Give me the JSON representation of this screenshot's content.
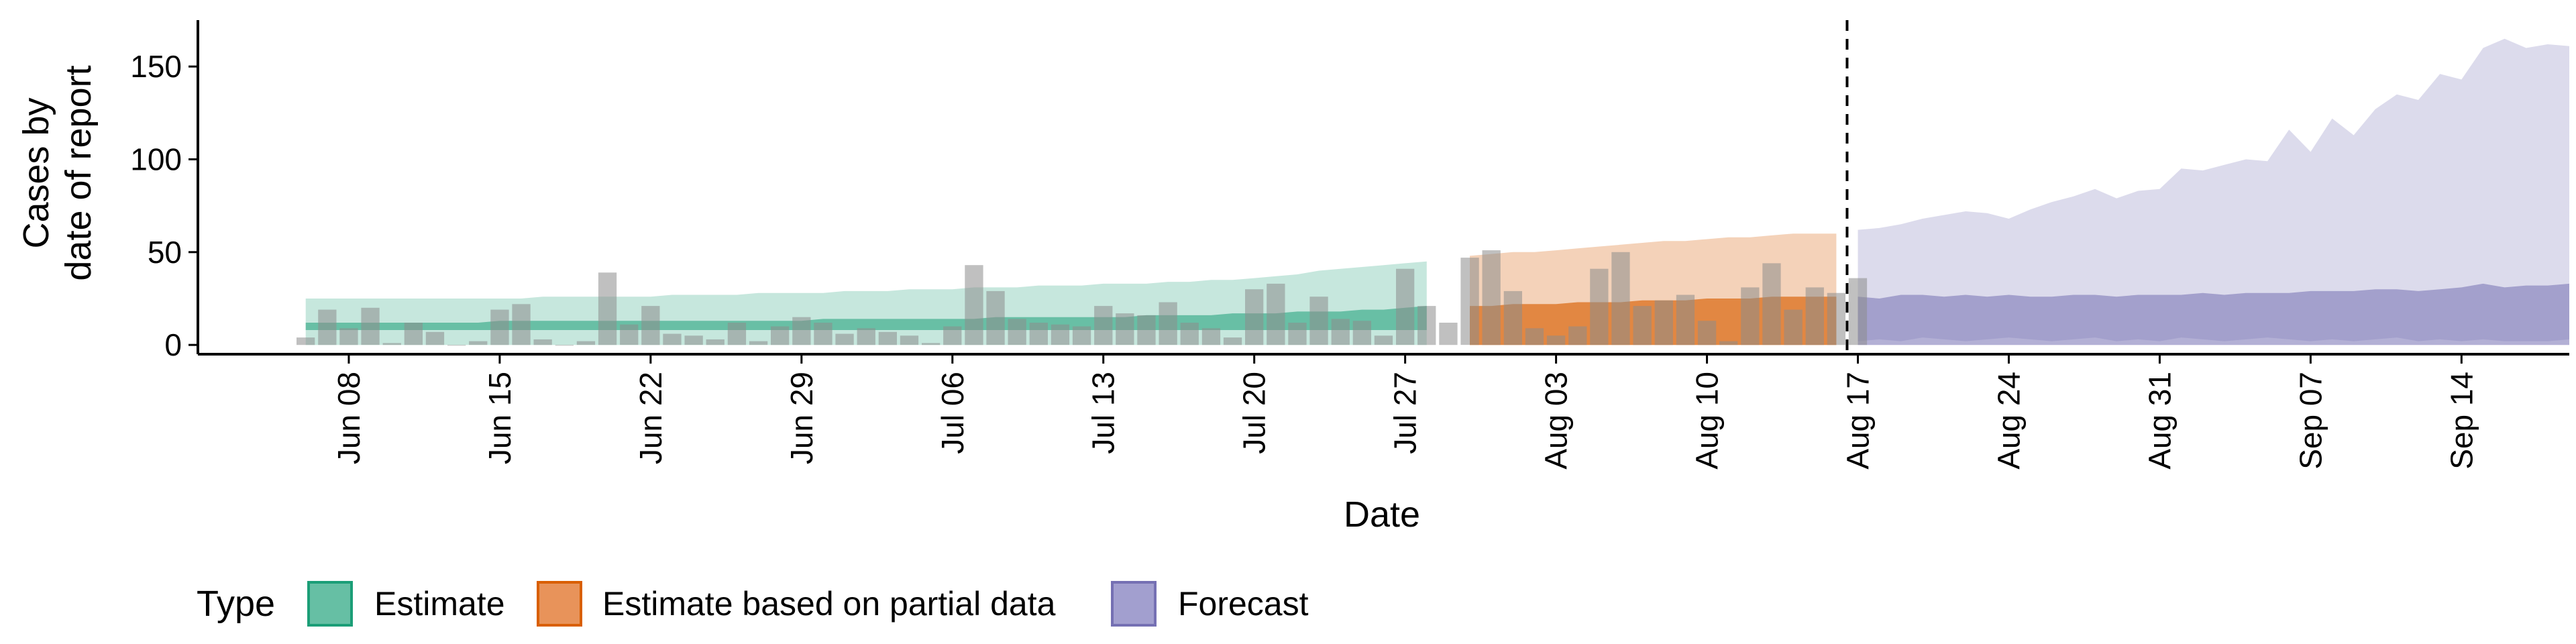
{
  "chart_data": {
    "type": "bar",
    "xlabel": "Date",
    "ylabel_line1": "Cases by",
    "ylabel_line2": "date of report",
    "ylim": [
      -5,
      175
    ],
    "yticks": [
      0,
      50,
      100,
      150
    ],
    "x_start": "2020-06-06",
    "xticks": [
      {
        "date": "2020-06-08",
        "label": "Jun 08"
      },
      {
        "date": "2020-06-15",
        "label": "Jun 15"
      },
      {
        "date": "2020-06-22",
        "label": "Jun 22"
      },
      {
        "date": "2020-06-29",
        "label": "Jun 29"
      },
      {
        "date": "2020-07-06",
        "label": "Jul 06"
      },
      {
        "date": "2020-07-13",
        "label": "Jul 13"
      },
      {
        "date": "2020-07-20",
        "label": "Jul 20"
      },
      {
        "date": "2020-07-27",
        "label": "Jul 27"
      },
      {
        "date": "2020-08-03",
        "label": "Aug 03"
      },
      {
        "date": "2020-08-10",
        "label": "Aug 10"
      },
      {
        "date": "2020-08-17",
        "label": "Aug 17"
      },
      {
        "date": "2020-08-24",
        "label": "Aug 24"
      },
      {
        "date": "2020-08-31",
        "label": "Aug 31"
      },
      {
        "date": "2020-09-07",
        "label": "Sep 07"
      },
      {
        "date": "2020-09-14",
        "label": "Sep 14"
      }
    ],
    "xlim": [
      "2020-06-01",
      "2020-09-19"
    ],
    "forecast_start_line": "2020-08-16",
    "observed_cases": [
      4,
      19,
      9,
      20,
      1,
      12,
      7,
      0,
      2,
      19,
      22,
      3,
      0,
      2,
      39,
      11,
      21,
      6,
      5,
      3,
      12,
      2,
      10,
      15,
      12,
      6,
      9,
      7,
      5,
      1,
      10,
      43,
      29,
      14,
      12,
      11,
      10,
      21,
      17,
      16,
      23,
      12,
      9,
      4,
      30,
      33,
      12,
      26,
      14,
      13,
      5,
      41,
      21,
      12,
      47,
      51,
      29,
      9,
      5,
      10,
      41,
      50,
      21,
      24,
      27,
      13,
      2,
      31,
      44,
      19,
      31,
      28,
      36
    ],
    "estimate": {
      "name": "Estimate",
      "color": "#1B9E77",
      "start": "2020-06-06",
      "lower90": [
        0,
        0,
        0,
        0,
        0,
        0,
        0,
        0,
        0,
        0,
        0,
        0,
        0,
        0,
        0,
        0,
        0,
        0,
        0,
        0,
        0,
        0,
        0,
        0,
        0,
        0,
        0,
        0,
        0,
        0,
        0,
        0,
        0,
        0,
        0,
        0,
        0,
        0,
        0,
        0,
        0,
        0,
        0,
        0,
        0,
        0,
        0,
        0,
        0,
        0,
        0,
        0,
        0
      ],
      "upper90": [
        25,
        25,
        25,
        25,
        25,
        25,
        25,
        25,
        25,
        25,
        25,
        26,
        26,
        26,
        26,
        26,
        26,
        27,
        27,
        27,
        27,
        28,
        28,
        28,
        28,
        29,
        29,
        29,
        30,
        30,
        30,
        31,
        31,
        31,
        32,
        32,
        32,
        33,
        33,
        33,
        34,
        34,
        35,
        35,
        36,
        37,
        38,
        40,
        41,
        42,
        43,
        44,
        45
      ],
      "lower50": [
        8,
        8,
        8,
        8,
        8,
        8,
        8,
        8,
        8,
        8,
        8,
        8,
        8,
        8,
        8,
        8,
        8,
        8,
        8,
        8,
        8,
        8,
        8,
        8,
        8,
        8,
        8,
        8,
        8,
        8,
        8,
        8,
        8,
        8,
        8,
        8,
        8,
        8,
        8,
        8,
        8,
        8,
        8,
        8,
        8,
        8,
        8,
        8,
        8,
        8,
        8,
        8,
        8
      ],
      "upper50": [
        12,
        12,
        12,
        12,
        12,
        12,
        12,
        12,
        12,
        13,
        13,
        13,
        13,
        13,
        13,
        13,
        13,
        13,
        13,
        13,
        13,
        13,
        13,
        13,
        14,
        14,
        14,
        14,
        14,
        14,
        14,
        14,
        15,
        15,
        15,
        15,
        15,
        15,
        15,
        16,
        16,
        16,
        16,
        17,
        17,
        17,
        18,
        18,
        18,
        19,
        19,
        20,
        21
      ]
    },
    "partial": {
      "name": "Estimate based on partial data",
      "color": "#D95F02",
      "start": "2020-07-30",
      "lower90": [
        0,
        0,
        0,
        0,
        0,
        0,
        0,
        0,
        0,
        0,
        0,
        0,
        0,
        0,
        0,
        0,
        0,
        0
      ],
      "upper90": [
        48,
        49,
        50,
        50,
        51,
        52,
        53,
        54,
        55,
        56,
        56,
        57,
        58,
        58,
        59,
        60,
        60,
        60
      ],
      "lower50": [
        0,
        0,
        0,
        0,
        0,
        0,
        0,
        0,
        0,
        0,
        0,
        0,
        0,
        0,
        0,
        0,
        0,
        0
      ],
      "upper50": [
        21,
        21,
        22,
        22,
        22,
        23,
        23,
        23,
        24,
        24,
        24,
        25,
        25,
        25,
        26,
        26,
        26,
        26
      ]
    },
    "forecast": {
      "name": "Forecast",
      "color": "#7570B3",
      "start": "2020-08-17",
      "lower90": [
        2,
        3,
        2,
        4,
        3,
        2,
        3,
        4,
        3,
        2,
        3,
        4,
        2,
        3,
        2,
        4,
        3,
        2,
        3,
        4,
        3,
        2,
        3,
        2,
        3,
        4,
        2,
        3,
        2,
        3,
        2,
        2,
        2,
        3
      ],
      "upper90": [
        62,
        63,
        65,
        68,
        70,
        72,
        71,
        68,
        73,
        77,
        80,
        84,
        79,
        83,
        84,
        95,
        94,
        97,
        100,
        99,
        116,
        104,
        122,
        113,
        127,
        135,
        132,
        146,
        143,
        160,
        165,
        160,
        162,
        161
      ],
      "lower50": [
        0,
        0,
        0,
        0,
        0,
        0,
        0,
        0,
        0,
        0,
        0,
        0,
        0,
        0,
        0,
        0,
        0,
        0,
        0,
        0,
        0,
        0,
        0,
        0,
        0,
        0,
        0,
        0,
        0,
        0,
        0,
        0,
        0,
        0
      ],
      "upper50": [
        26,
        25,
        27,
        27,
        26,
        27,
        26,
        27,
        26,
        26,
        27,
        27,
        26,
        27,
        27,
        27,
        28,
        27,
        28,
        28,
        28,
        29,
        29,
        29,
        30,
        30,
        29,
        30,
        31,
        33,
        31,
        32,
        32,
        33
      ]
    },
    "legend": {
      "title": "Type",
      "position": "bottom",
      "items": [
        {
          "label": "Estimate",
          "fill": "#66BFA4",
          "stroke": "#1B9E77"
        },
        {
          "label": "Estimate based on partial data",
          "fill": "#E8935A",
          "stroke": "#D95F02"
        },
        {
          "label": "Forecast",
          "fill": "#A29FCF",
          "stroke": "#7570B3"
        }
      ]
    },
    "grid": false
  }
}
